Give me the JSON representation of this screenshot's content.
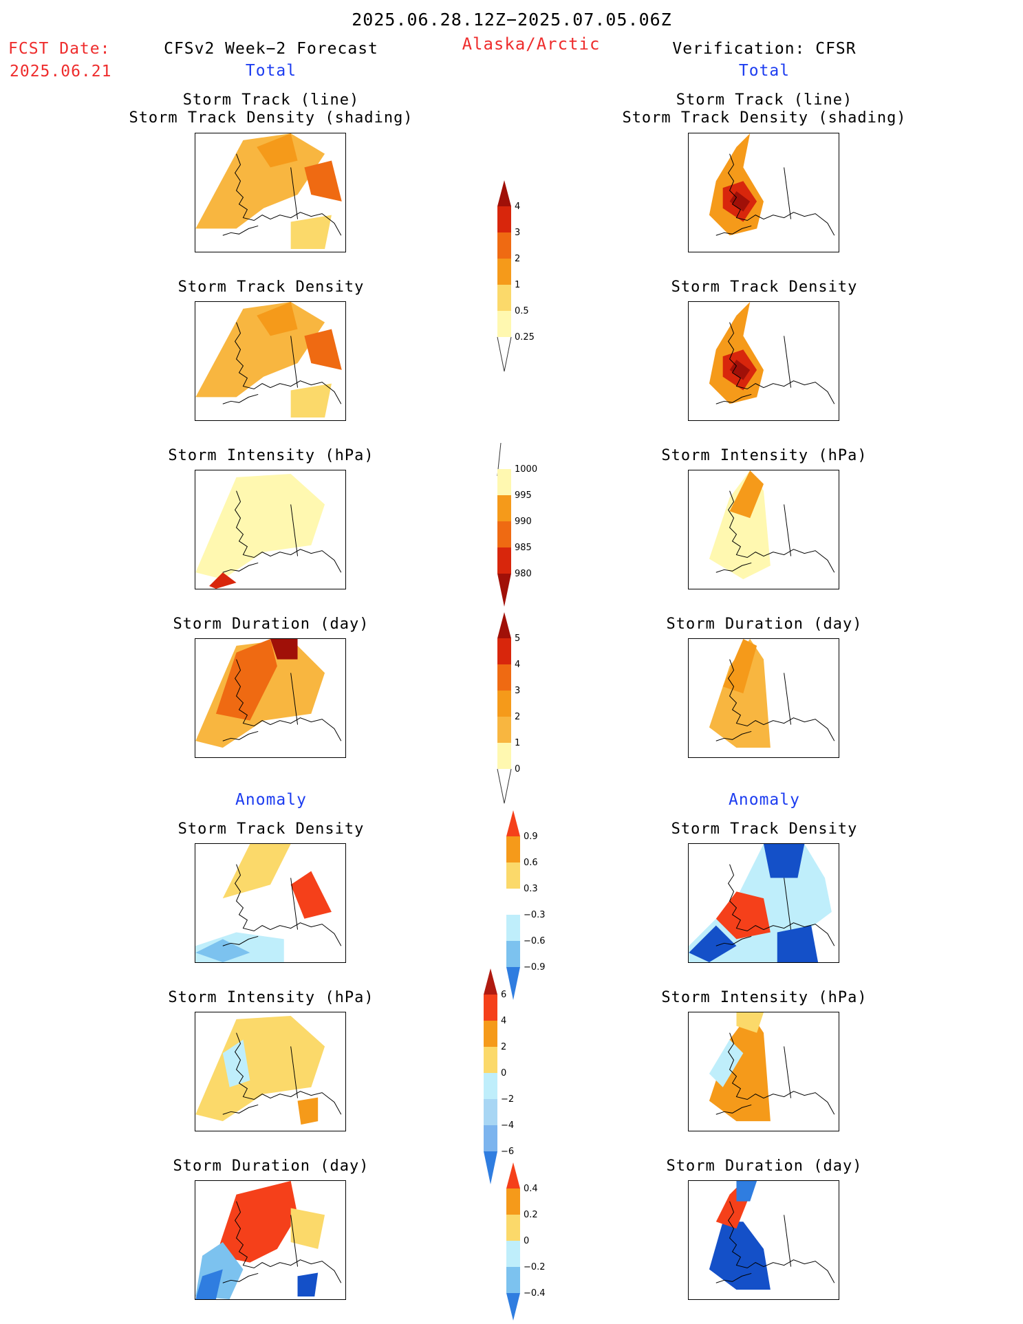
{
  "header": {
    "date_range": "2025.06.28.12Z−2025.07.05.06Z",
    "region": "Alaska/Arctic",
    "fcst_label": "FCST Date:",
    "fcst_date": "2025.06.21",
    "left_title": "CFSv2 Week−2 Forecast",
    "right_title": "Verification: CFSR",
    "left_sub": "Total",
    "right_sub": "Total"
  },
  "sections": {
    "anomaly_left": "Anomaly",
    "anomaly_right": "Anomaly"
  },
  "panels": {
    "track_line": "Storm Track (line)",
    "track_density_shading": "Storm Track Density (shading)",
    "track_density": "Storm Track Density",
    "intensity": "Storm Intensity (hPa)",
    "duration": "Storm Duration (day)"
  },
  "colorbars": {
    "density_total": [
      "4",
      "3",
      "2",
      "1",
      "0.5",
      "0.25"
    ],
    "intensity_total": [
      "1000",
      "995",
      "990",
      "985",
      "980"
    ],
    "duration_total": [
      "5",
      "4",
      "3",
      "2",
      "1",
      "0"
    ],
    "density_anom": [
      "0.9",
      "0.6",
      "0.3",
      "−0.3",
      "−0.6",
      "−0.9"
    ],
    "intensity_anom": [
      "6",
      "4",
      "2",
      "0",
      "−2",
      "−4",
      "−6"
    ],
    "duration_anom": [
      "0.4",
      "0.2",
      "0",
      "−0.2",
      "−0.4"
    ]
  },
  "colors": {
    "title_red": "#ee2c2c",
    "title_blue": "#1c3cf0",
    "c_0_25": "#fff8b0",
    "c_0_5": "#fbd96a",
    "c_1": "#f8b640",
    "c_2": "#f59a1a",
    "c_3": "#ef6a12",
    "c_4": "#d8260c",
    "c_5": "#a01008",
    "c_neg1": "#bfeefb",
    "c_neg2": "#7cc2ef",
    "c_neg3": "#2f7de0",
    "c_neg4": "#1450c8"
  }
}
